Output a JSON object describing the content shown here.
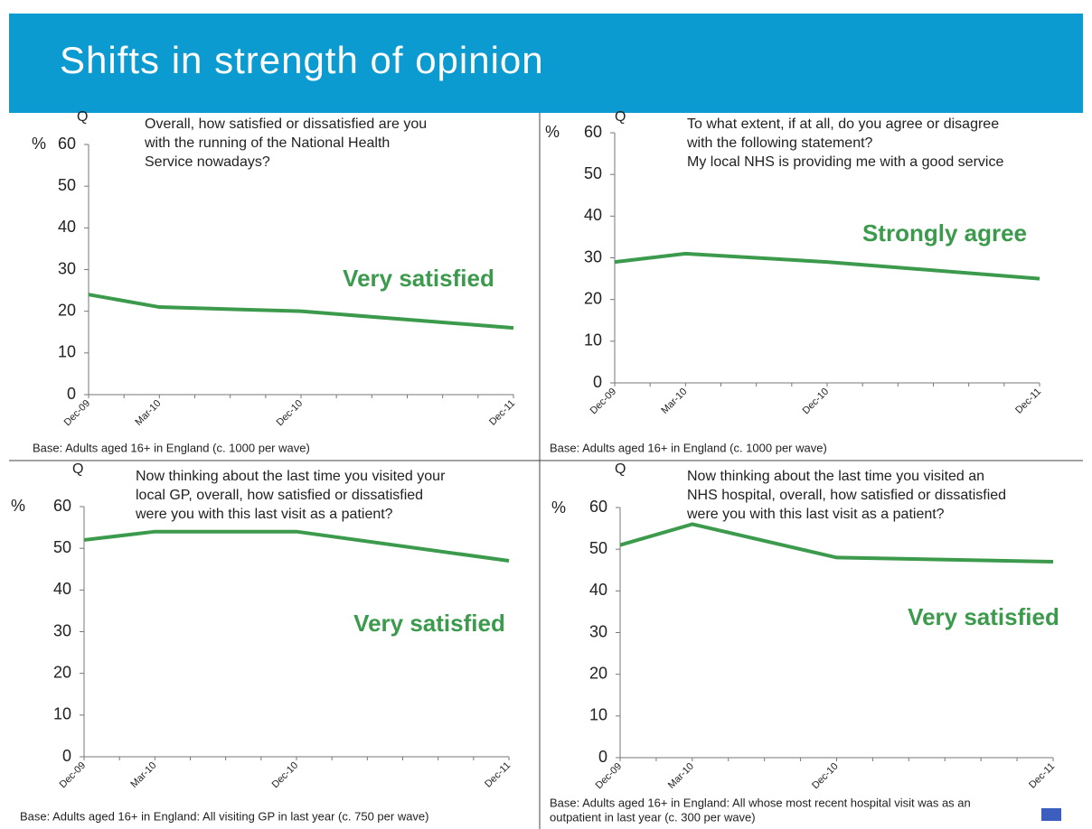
{
  "title": "Shifts in strength of opinion",
  "chart_data": [
    {
      "type": "line",
      "q_label": "Q",
      "y_unit": "%",
      "question": [
        "Overall, how satisfied or dissatisfied are you",
        "with the running of the National Health",
        "Service nowadays?"
      ],
      "categories": [
        "Dec-09",
        "Mar-10",
        "Dec-10",
        "Dec-11"
      ],
      "series": [
        {
          "name": "Very satisfied",
          "color": "#3b9a4c",
          "values": [
            24,
            21,
            20,
            16
          ]
        }
      ],
      "ylim": [
        0,
        60
      ],
      "yticks": [
        0,
        10,
        20,
        30,
        40,
        50,
        60
      ],
      "footnote": [
        "Base: Adults aged 16+ in England (c. 1000 per wave)"
      ]
    },
    {
      "type": "line",
      "q_label": "Q",
      "y_unit": "%",
      "question": [
        "To what extent, if at all, do you agree or disagree",
        "with the following statement?",
        "My local NHS is providing me with a good service"
      ],
      "categories": [
        "Dec-09",
        "Mar-10",
        "Dec-10",
        "Dec-11"
      ],
      "series": [
        {
          "name": "Strongly agree",
          "color": "#3b9a4c",
          "values": [
            29,
            31,
            29,
            25
          ]
        }
      ],
      "ylim": [
        0,
        60
      ],
      "yticks": [
        0,
        10,
        20,
        30,
        40,
        50,
        60
      ],
      "footnote": [
        "Base: Adults aged 16+ in England (c. 1000 per wave)"
      ]
    },
    {
      "type": "line",
      "q_label": "Q",
      "y_unit": "%",
      "question": [
        "Now thinking about the last time you visited your",
        "local GP, overall, how satisfied or dissatisfied",
        "were you with this last visit as a patient?"
      ],
      "categories": [
        "Dec-09",
        "Mar-10",
        "Dec-10",
        "Dec-11"
      ],
      "series": [
        {
          "name": "Very satisfied",
          "color": "#3b9a4c",
          "values": [
            52,
            54,
            54,
            47
          ]
        }
      ],
      "ylim": [
        0,
        60
      ],
      "yticks": [
        0,
        10,
        20,
        30,
        40,
        50,
        60
      ],
      "footnote": [
        "Base: Adults aged 16+ in England: All visiting GP in last year (c. 750 per wave)"
      ]
    },
    {
      "type": "line",
      "q_label": "Q",
      "y_unit": "%",
      "question": [
        "Now thinking about the last time you visited an",
        "NHS hospital, overall, how satisfied or dissatisfied",
        "were you with this last visit as a patient?"
      ],
      "categories": [
        "Dec-09",
        "Mar-10",
        "Dec-10",
        "Dec-11"
      ],
      "series": [
        {
          "name": "Very satisfied",
          "color": "#3b9a4c",
          "values": [
            51,
            56,
            48,
            47
          ]
        }
      ],
      "ylim": [
        0,
        60
      ],
      "yticks": [
        0,
        10,
        20,
        30,
        40,
        50,
        60
      ],
      "footnote": [
        "Base: Adults aged 16+ in England: All whose most recent hospital visit was as an",
        "outpatient in last year (c. 300 per wave)"
      ]
    }
  ]
}
